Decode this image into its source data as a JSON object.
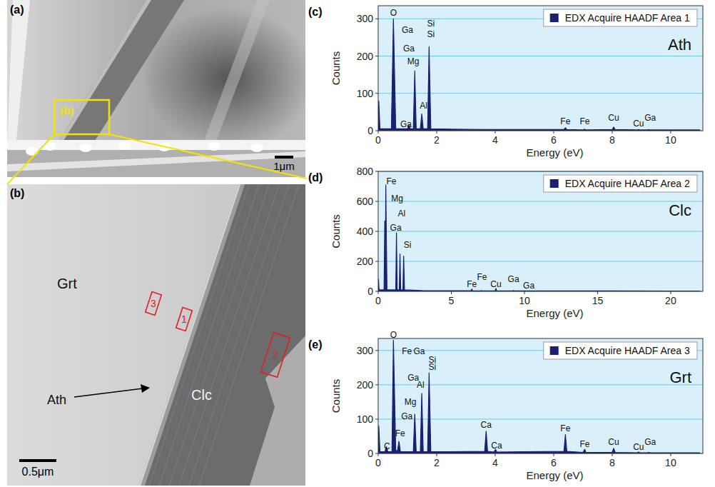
{
  "images": [
    {
      "letter": "(a)",
      "inset_label": "(b)",
      "scale_bar": "1μm"
    },
    {
      "letter": "(b)",
      "labels": [
        "Grt",
        "Ath",
        "Clc"
      ],
      "areas": [
        "3",
        "1",
        "2"
      ],
      "scale_bar": "0.5μm"
    }
  ],
  "chart_data": [
    {
      "type": "area",
      "panel": "(c)",
      "title": "Ath",
      "x_label": "Energy (eV)",
      "y_label": "Counts",
      "xlim": [
        0,
        11.1
      ],
      "ylim": [
        0,
        335
      ],
      "xticks": [
        0,
        2,
        4,
        6,
        8,
        10
      ],
      "yticks": [
        0,
        100,
        200,
        300
      ],
      "grid": true,
      "legend": "upper right",
      "series": [
        {
          "name": "EDX Acquire HAADF Area 1",
          "color": "#1b2170",
          "x": [
            0,
            0.02,
            0.06,
            0.45,
            0.52,
            0.6,
            1.0,
            1.05,
            1.1,
            1.2,
            1.25,
            1.3,
            1.44,
            1.49,
            1.54,
            1.69,
            1.74,
            1.8,
            2.5,
            3.5,
            5,
            6.35,
            6.4,
            6.45,
            7.0,
            7.06,
            7.1,
            8.0,
            8.05,
            8.1,
            8.85,
            8.9,
            8.95,
            9.2,
            9.25,
            9.3,
            10,
            11
          ],
          "values": [
            5,
            80,
            5,
            5,
            300,
            5,
            5,
            15,
            5,
            5,
            160,
            5,
            5,
            45,
            5,
            5,
            225,
            5,
            4,
            3,
            3,
            3,
            8,
            3,
            2,
            4,
            2,
            3,
            10,
            3,
            2,
            3,
            2,
            2,
            3,
            2,
            2,
            2
          ]
        }
      ],
      "annotations": [
        {
          "x": 0.52,
          "y": 308,
          "text": "O"
        },
        {
          "x": 1.0,
          "y": 262,
          "text": "Ga"
        },
        {
          "x": 1.8,
          "y": 280,
          "text": "Si"
        },
        {
          "x": 1.05,
          "y": 212,
          "text": "Ga"
        },
        {
          "x": 1.8,
          "y": 250,
          "text": "Si"
        },
        {
          "x": 1.2,
          "y": 178,
          "text": "Mg"
        },
        {
          "x": 1.55,
          "y": 60,
          "text": "Al"
        },
        {
          "x": 0.95,
          "y": 10,
          "text": "Ga"
        },
        {
          "x": 6.4,
          "y": 18,
          "text": "Fe"
        },
        {
          "x": 7.06,
          "y": 18,
          "text": "Fe"
        },
        {
          "x": 8.05,
          "y": 26,
          "text": "Cu"
        },
        {
          "x": 8.9,
          "y": 12,
          "text": "Cu"
        },
        {
          "x": 9.3,
          "y": 26,
          "text": "Ga"
        }
      ]
    },
    {
      "type": "area",
      "panel": "(d)",
      "title": "Clc",
      "x_label": "Energy (eV)",
      "y_label": "Counts",
      "xlim": [
        0,
        22.2
      ],
      "ylim": [
        0,
        800
      ],
      "xticks": [
        0,
        5,
        10,
        15,
        20
      ],
      "yticks": [
        0,
        200,
        400,
        600,
        800
      ],
      "grid": true,
      "legend": "upper right",
      "series": [
        {
          "name": "EDX Acquire HAADF Area 2",
          "color": "#1b2170",
          "x": [
            0,
            0.02,
            0.06,
            0.4,
            0.45,
            0.48,
            0.52,
            0.6,
            1.2,
            1.25,
            1.3,
            1.44,
            1.49,
            1.54,
            1.69,
            1.74,
            1.8,
            3,
            5,
            6.35,
            6.4,
            6.45,
            7.0,
            7.06,
            7.1,
            8.0,
            8.05,
            8.1,
            9.2,
            9.25,
            9.3,
            12,
            16,
            20,
            22
          ],
          "values": [
            10,
            80,
            10,
            10,
            470,
            20,
            710,
            10,
            10,
            390,
            10,
            10,
            250,
            10,
            10,
            235,
            10,
            5,
            4,
            4,
            15,
            4,
            3,
            6,
            3,
            4,
            20,
            4,
            3,
            6,
            3,
            3,
            3,
            2,
            2
          ]
        }
      ],
      "annotations": [
        {
          "x": 0.9,
          "y": 715,
          "text": "Fe"
        },
        {
          "x": 1.3,
          "y": 600,
          "text": "Mg"
        },
        {
          "x": 1.6,
          "y": 500,
          "text": "Al"
        },
        {
          "x": 1.2,
          "y": 405,
          "text": "Ga"
        },
        {
          "x": 2.0,
          "y": 290,
          "text": "Si"
        },
        {
          "x": 6.4,
          "y": 30,
          "text": "Fe"
        },
        {
          "x": 7.1,
          "y": 75,
          "text": "Fe"
        },
        {
          "x": 8.05,
          "y": 30,
          "text": "Cu"
        },
        {
          "x": 9.25,
          "y": 60,
          "text": "Ga"
        },
        {
          "x": 10.3,
          "y": 20,
          "text": "Ga"
        }
      ]
    },
    {
      "type": "area",
      "panel": "(e)",
      "title": "Grt",
      "x_label": "Energy (eV)",
      "y_label": "Counts",
      "xlim": [
        0,
        11.1
      ],
      "ylim": [
        0,
        335
      ],
      "xticks": [
        0,
        2,
        4,
        6,
        8,
        10
      ],
      "yticks": [
        0,
        100,
        200,
        300
      ],
      "grid": true,
      "legend": "upper right",
      "series": [
        {
          "name": "EDX Acquire HAADF Area 3",
          "color": "#1b2170",
          "x": [
            0,
            0.02,
            0.06,
            0.23,
            0.28,
            0.33,
            0.47,
            0.52,
            0.6,
            0.66,
            0.71,
            0.76,
            1.2,
            1.25,
            1.3,
            1.44,
            1.49,
            1.54,
            1.69,
            1.74,
            1.8,
            2.5,
            3.64,
            3.69,
            3.74,
            3.96,
            4.01,
            4.06,
            5,
            6.35,
            6.4,
            6.45,
            7.0,
            7.06,
            7.1,
            8.0,
            8.05,
            8.1,
            8.85,
            8.9,
            8.95,
            9.2,
            9.25,
            9.3,
            10,
            11
          ],
          "values": [
            5,
            80,
            5,
            5,
            20,
            5,
            5,
            330,
            8,
            8,
            35,
            5,
            5,
            115,
            5,
            5,
            175,
            5,
            5,
            235,
            5,
            5,
            6,
            65,
            6,
            4,
            12,
            4,
            5,
            6,
            55,
            6,
            3,
            12,
            3,
            3,
            15,
            3,
            2,
            4,
            2,
            2,
            3,
            2,
            2,
            2
          ]
        }
      ],
      "annotations": [
        {
          "x": 0.52,
          "y": 338,
          "text": "O"
        },
        {
          "x": 0.98,
          "y": 290,
          "text": "Fe"
        },
        {
          "x": 1.4,
          "y": 290,
          "text": "Ga"
        },
        {
          "x": 1.85,
          "y": 265,
          "text": "Si"
        },
        {
          "x": 1.85,
          "y": 243,
          "text": "Si"
        },
        {
          "x": 1.2,
          "y": 212,
          "text": "Ga"
        },
        {
          "x": 1.45,
          "y": 192,
          "text": "Al"
        },
        {
          "x": 1.1,
          "y": 142,
          "text": "Mg"
        },
        {
          "x": 0.98,
          "y": 100,
          "text": "Ga"
        },
        {
          "x": 0.75,
          "y": 50,
          "text": "Fe"
        },
        {
          "x": 0.3,
          "y": 12,
          "text": "C"
        },
        {
          "x": 3.69,
          "y": 75,
          "text": "Ca"
        },
        {
          "x": 4.05,
          "y": 14,
          "text": "Ca"
        },
        {
          "x": 6.4,
          "y": 64,
          "text": "Fe"
        },
        {
          "x": 7.06,
          "y": 18,
          "text": "Fe"
        },
        {
          "x": 8.05,
          "y": 24,
          "text": "Cu"
        },
        {
          "x": 8.9,
          "y": 10,
          "text": "Cu"
        },
        {
          "x": 9.3,
          "y": 24,
          "text": "Ga"
        }
      ]
    }
  ]
}
